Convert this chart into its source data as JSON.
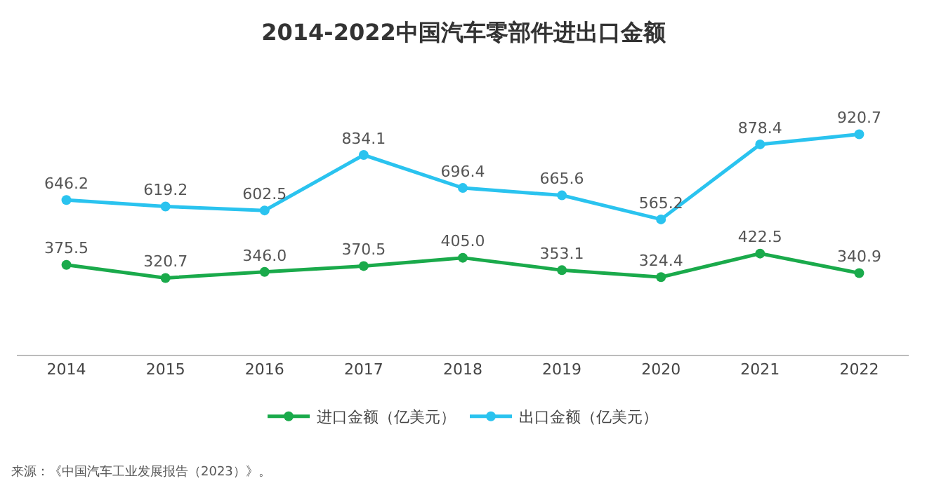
{
  "chart_data": {
    "type": "line",
    "title": "2014-2022中国汽车零部件进出口金额",
    "categories": [
      "2014",
      "2015",
      "2016",
      "2017",
      "2018",
      "2019",
      "2020",
      "2021",
      "2022"
    ],
    "series": [
      {
        "name": "进口金额（亿美元）",
        "color": "#1aaa4b",
        "values": [
          375.5,
          320.7,
          346.0,
          370.5,
          405.0,
          353.1,
          324.4,
          422.5,
          340.9
        ],
        "value_labels": [
          "375.5",
          "320.7",
          "346.0",
          "370.5",
          "405.0",
          "353.1",
          "324.4",
          "422.5",
          "340.9"
        ]
      },
      {
        "name": "出口金额（亿美元）",
        "color": "#2ac3ef",
        "values": [
          646.2,
          619.2,
          602.5,
          834.1,
          696.4,
          665.6,
          565.2,
          878.4,
          920.7
        ],
        "value_labels": [
          "646.2",
          "619.2",
          "602.5",
          "834.1",
          "696.4",
          "665.6",
          "565.2",
          "878.4",
          "920.7"
        ]
      }
    ],
    "marker": "circle",
    "legend": "bottom",
    "grid": false,
    "annotations": [
      "来源：《中国汽车工业发展报告（2023）》。"
    ]
  }
}
